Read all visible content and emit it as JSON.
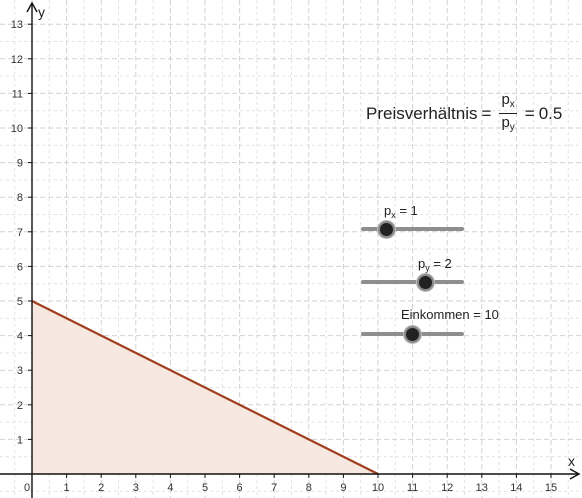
{
  "plot": {
    "x_axis_label": "x",
    "y_axis_label": "y",
    "x_ticks": [
      "0",
      "1",
      "2",
      "3",
      "4",
      "5",
      "6",
      "7",
      "8",
      "9",
      "10",
      "11",
      "12",
      "13",
      "14",
      "15"
    ],
    "y_ticks": [
      "1",
      "2",
      "3",
      "4",
      "5",
      "6",
      "7",
      "8",
      "9",
      "10",
      "11",
      "12",
      "13"
    ],
    "x_range": [
      -0.9,
      15.8
    ],
    "y_range": [
      -0.5,
      13.3
    ],
    "grid": true,
    "budget_line": {
      "from": [
        0,
        5
      ],
      "to": [
        10,
        0
      ],
      "color": "#a0401f",
      "fill": "#f6e7e0"
    }
  },
  "formula": {
    "label": "Preisverhältnis",
    "numerator": "p",
    "numerator_sub": "x",
    "denominator": "p",
    "denominator_sub": "y",
    "result": "0.5"
  },
  "sliders": {
    "px": {
      "name": "p",
      "sub": "x",
      "text": " = 1",
      "value": 1,
      "fraction": 0.25
    },
    "py": {
      "name": "p",
      "sub": "y",
      "text": " = 2",
      "value": 2,
      "fraction": 0.63
    },
    "income": {
      "text": "Einkommen = 10",
      "value": 10,
      "fraction": 0.5
    }
  },
  "colors": {
    "grid_major": "#d2d2d2",
    "axis": "#111111",
    "line": "#a0401f",
    "area": "#f6e7e0"
  }
}
